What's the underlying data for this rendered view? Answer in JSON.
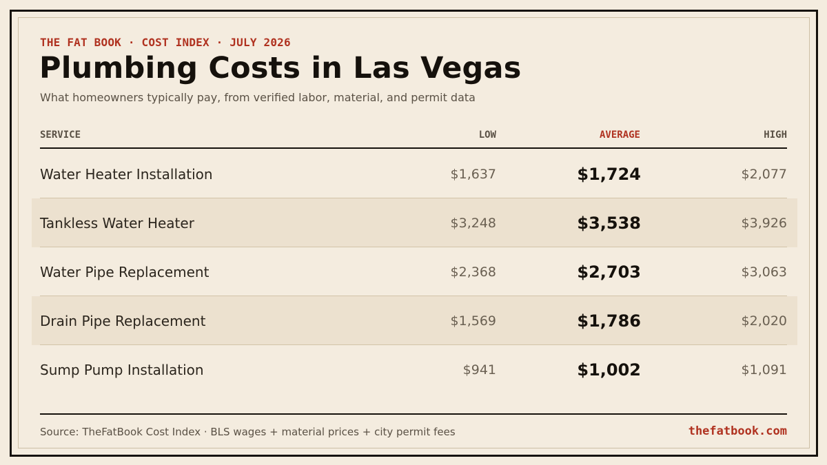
{
  "header": {
    "kicker": "THE FAT BOOK · COST INDEX · JULY 2026",
    "title": "Plumbing Costs in Las Vegas",
    "subtitle": "What homeowners typically pay, from verified labor, material, and permit data"
  },
  "table": {
    "columns": {
      "service": "SERVICE",
      "low": "LOW",
      "average": "AVERAGE",
      "high": "HIGH"
    },
    "rows": [
      {
        "service": "Water Heater Installation",
        "low": "$1,637",
        "average": "$1,724",
        "high": "$2,077"
      },
      {
        "service": "Tankless Water Heater",
        "low": "$3,248",
        "average": "$3,538",
        "high": "$3,926"
      },
      {
        "service": "Water Pipe Replacement",
        "low": "$2,368",
        "average": "$2,703",
        "high": "$3,063"
      },
      {
        "service": "Drain Pipe Replacement",
        "low": "$1,569",
        "average": "$1,786",
        "high": "$2,020"
      },
      {
        "service": "Sump Pump Installation",
        "low": "$941",
        "average": "$1,002",
        "high": "$1,091"
      }
    ]
  },
  "footer": {
    "source": "Source: TheFatBook Cost Index · BLS wages + material prices + city permit fees",
    "site": "thefatbook.com"
  },
  "colors": {
    "background": "#f4ecdf",
    "accent": "#b03220",
    "ink": "#15110c",
    "alt_row": "#ece1cf"
  }
}
